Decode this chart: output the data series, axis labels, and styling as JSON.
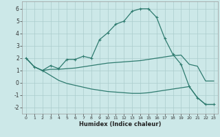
{
  "xlabel": "Humidex (Indice chaleur)",
  "bg_color": "#cce8e8",
  "grid_color": "#aacccc",
  "line_color": "#2d7a6e",
  "xlim": [
    -0.5,
    23.5
  ],
  "ylim": [
    -2.5,
    6.6
  ],
  "xticks": [
    0,
    1,
    2,
    3,
    4,
    5,
    6,
    7,
    8,
    9,
    10,
    11,
    12,
    13,
    14,
    15,
    16,
    17,
    18,
    19,
    20,
    21,
    22,
    23
  ],
  "yticks": [
    -2,
    -1,
    0,
    1,
    2,
    3,
    4,
    5,
    6
  ],
  "line1_x": [
    0,
    1,
    2,
    3,
    4,
    5,
    6,
    7,
    8,
    9,
    10,
    11,
    12,
    13,
    14,
    15,
    16,
    17,
    18,
    19,
    20,
    21,
    22,
    23
  ],
  "line1_y": [
    2.0,
    1.3,
    1.0,
    1.4,
    1.15,
    1.9,
    1.9,
    2.15,
    2.0,
    3.5,
    4.05,
    4.75,
    5.0,
    5.8,
    6.0,
    6.0,
    5.3,
    3.6,
    2.3,
    1.5,
    -0.3,
    -1.2,
    -1.75,
    -1.75
  ],
  "line2_x": [
    0,
    1,
    2,
    3,
    4,
    5,
    6,
    7,
    8,
    9,
    10,
    11,
    12,
    13,
    14,
    15,
    16,
    17,
    18,
    19,
    20,
    21,
    22,
    23
  ],
  "line2_y": [
    2.0,
    1.3,
    1.0,
    1.1,
    1.1,
    1.15,
    1.2,
    1.3,
    1.4,
    1.5,
    1.6,
    1.65,
    1.7,
    1.75,
    1.8,
    1.9,
    2.0,
    2.1,
    2.2,
    2.25,
    1.5,
    1.35,
    0.15,
    0.15
  ],
  "line3_x": [
    0,
    1,
    2,
    3,
    4,
    5,
    6,
    7,
    8,
    9,
    10,
    11,
    12,
    13,
    14,
    15,
    16,
    17,
    18,
    19,
    20,
    21,
    22,
    23
  ],
  "line3_y": [
    2.0,
    1.3,
    1.0,
    0.6,
    0.2,
    -0.05,
    -0.2,
    -0.35,
    -0.5,
    -0.6,
    -0.7,
    -0.75,
    -0.8,
    -0.85,
    -0.85,
    -0.8,
    -0.7,
    -0.6,
    -0.5,
    -0.4,
    -0.3,
    -1.2,
    -1.75,
    -1.75
  ]
}
